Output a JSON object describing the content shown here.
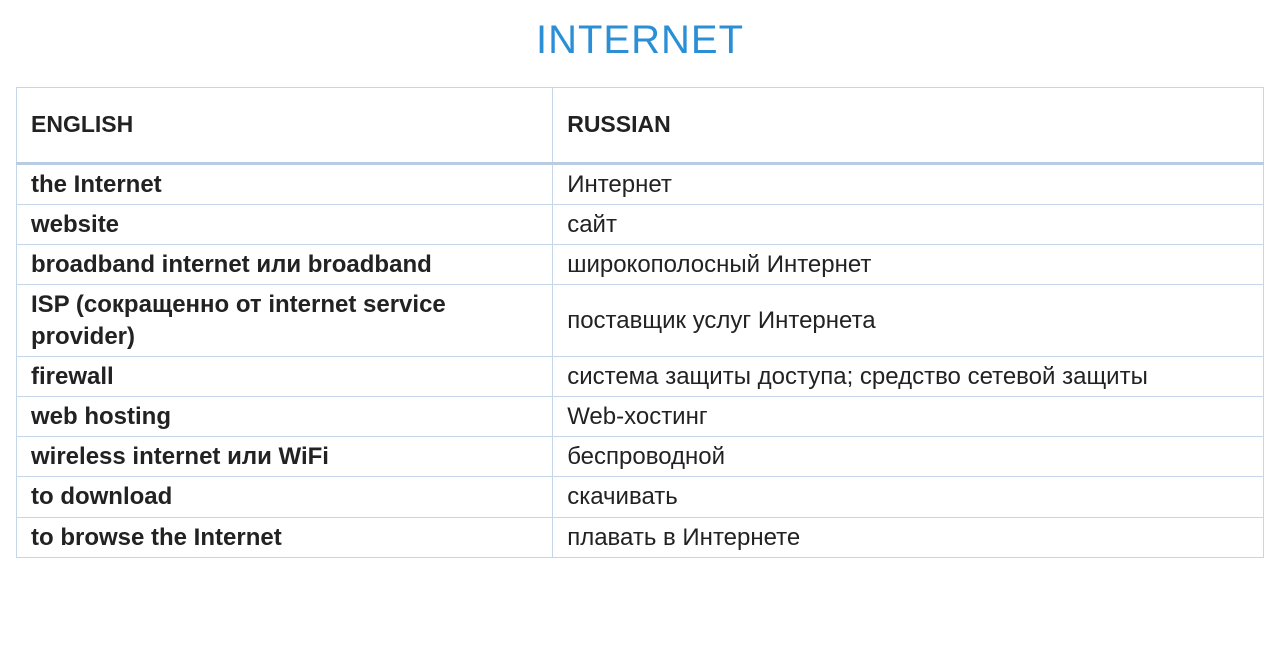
{
  "title": "INTERNET",
  "colors": {
    "title": "#2b8fd6",
    "border": "#c5d6e8",
    "header_rule": "#b8cde2",
    "text": "#222222",
    "background": "#ffffff"
  },
  "typography": {
    "title_fontsize": 40,
    "title_weight": 300,
    "header_fontsize": 23,
    "header_weight": 700,
    "cell_fontsize": 24,
    "en_weight": 700,
    "ru_weight": 400,
    "font_family": "Segoe UI / Myriad Pro"
  },
  "table": {
    "columns": [
      {
        "key": "en",
        "label": "ENGLISH",
        "width_pct": 43
      },
      {
        "key": "ru",
        "label": "RUSSIAN",
        "width_pct": 57
      }
    ],
    "rows": [
      {
        "en": "the Internet",
        "ru": "Интернет"
      },
      {
        "en": "website",
        "ru": "сайт"
      },
      {
        "en": "broadband internet или broadband",
        "ru": "широкополосный Интернет"
      },
      {
        "en": "ISP (сокращенно от internet service provider)",
        "ru": "поставщик услуг Интернета"
      },
      {
        "en": "firewall",
        "ru": "система защиты доступа; средство сетевой защиты"
      },
      {
        "en": "web hosting",
        "ru": "Web-хостинг"
      },
      {
        "en": "wireless internet или WiFi",
        "ru": "беспроводной"
      },
      {
        "en": "to download",
        "ru": "скачивать"
      },
      {
        "en": "to browse the Internet",
        "ru": "плавать в Интернете"
      }
    ]
  }
}
